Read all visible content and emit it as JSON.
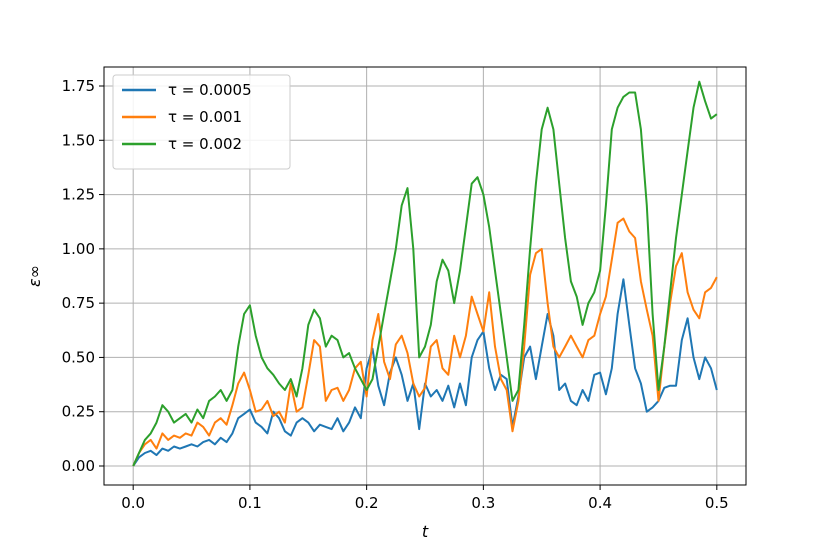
{
  "chart_data": {
    "type": "line",
    "xlabel": "t",
    "ylabel": "ε∞",
    "xlim": [
      -0.025,
      0.525
    ],
    "ylim": [
      -0.0875,
      1.8375
    ],
    "xticks": [
      0.0,
      0.1,
      0.2,
      0.3,
      0.4,
      0.5
    ],
    "xtick_labels": [
      "0.0",
      "0.1",
      "0.2",
      "0.3",
      "0.4",
      "0.5"
    ],
    "yticks": [
      0.0,
      0.25,
      0.5,
      0.75,
      1.0,
      1.25,
      1.5,
      1.75
    ],
    "ytick_labels": [
      "0.00",
      "0.25",
      "0.50",
      "0.75",
      "1.00",
      "1.25",
      "1.50",
      "1.75"
    ],
    "grid": true,
    "legend_position": "top-left",
    "series": [
      {
        "name": "τ = 0.0005",
        "color": "#1f77b4",
        "x": [
          0.0,
          0.005,
          0.01,
          0.015,
          0.02,
          0.025,
          0.03,
          0.035,
          0.04,
          0.045,
          0.05,
          0.055,
          0.06,
          0.065,
          0.07,
          0.075,
          0.08,
          0.085,
          0.09,
          0.095,
          0.1,
          0.105,
          0.11,
          0.115,
          0.12,
          0.125,
          0.13,
          0.135,
          0.14,
          0.145,
          0.15,
          0.155,
          0.16,
          0.165,
          0.17,
          0.175,
          0.18,
          0.185,
          0.19,
          0.195,
          0.2,
          0.205,
          0.21,
          0.215,
          0.22,
          0.225,
          0.23,
          0.235,
          0.24,
          0.245,
          0.25,
          0.255,
          0.26,
          0.265,
          0.27,
          0.275,
          0.28,
          0.285,
          0.29,
          0.295,
          0.3,
          0.305,
          0.31,
          0.315,
          0.32,
          0.325,
          0.33,
          0.335,
          0.34,
          0.345,
          0.35,
          0.355,
          0.36,
          0.365,
          0.37,
          0.375,
          0.38,
          0.385,
          0.39,
          0.395,
          0.4,
          0.405,
          0.41,
          0.415,
          0.42,
          0.425,
          0.43,
          0.435,
          0.44,
          0.445,
          0.45,
          0.455,
          0.46,
          0.465,
          0.47,
          0.475,
          0.48,
          0.485,
          0.49,
          0.495,
          0.5
        ],
        "values": [
          0.0,
          0.04,
          0.06,
          0.07,
          0.05,
          0.08,
          0.07,
          0.09,
          0.08,
          0.09,
          0.1,
          0.09,
          0.11,
          0.12,
          0.1,
          0.13,
          0.11,
          0.15,
          0.22,
          0.24,
          0.26,
          0.2,
          0.18,
          0.15,
          0.25,
          0.22,
          0.16,
          0.14,
          0.2,
          0.22,
          0.2,
          0.16,
          0.19,
          0.18,
          0.17,
          0.22,
          0.16,
          0.2,
          0.27,
          0.22,
          0.45,
          0.54,
          0.37,
          0.28,
          0.43,
          0.5,
          0.42,
          0.3,
          0.38,
          0.17,
          0.38,
          0.32,
          0.35,
          0.3,
          0.37,
          0.27,
          0.38,
          0.28,
          0.5,
          0.58,
          0.62,
          0.45,
          0.35,
          0.42,
          0.4,
          0.18,
          0.32,
          0.5,
          0.55,
          0.4,
          0.55,
          0.7,
          0.6,
          0.35,
          0.38,
          0.3,
          0.28,
          0.35,
          0.3,
          0.42,
          0.43,
          0.33,
          0.45,
          0.7,
          0.86,
          0.65,
          0.45,
          0.38,
          0.25,
          0.27,
          0.3,
          0.36,
          0.37,
          0.37,
          0.58,
          0.68,
          0.5,
          0.4,
          0.5,
          0.45,
          0.35
        ]
      },
      {
        "name": "τ = 0.001",
        "color": "#ff7f0e",
        "x": [
          0.0,
          0.005,
          0.01,
          0.015,
          0.02,
          0.025,
          0.03,
          0.035,
          0.04,
          0.045,
          0.05,
          0.055,
          0.06,
          0.065,
          0.07,
          0.075,
          0.08,
          0.085,
          0.09,
          0.095,
          0.1,
          0.105,
          0.11,
          0.115,
          0.12,
          0.125,
          0.13,
          0.135,
          0.14,
          0.145,
          0.15,
          0.155,
          0.16,
          0.165,
          0.17,
          0.175,
          0.18,
          0.185,
          0.19,
          0.195,
          0.2,
          0.205,
          0.21,
          0.215,
          0.22,
          0.225,
          0.23,
          0.235,
          0.24,
          0.245,
          0.25,
          0.255,
          0.26,
          0.265,
          0.27,
          0.275,
          0.28,
          0.285,
          0.29,
          0.295,
          0.3,
          0.305,
          0.31,
          0.315,
          0.32,
          0.325,
          0.33,
          0.335,
          0.34,
          0.345,
          0.35,
          0.355,
          0.36,
          0.365,
          0.37,
          0.375,
          0.38,
          0.385,
          0.39,
          0.395,
          0.4,
          0.405,
          0.41,
          0.415,
          0.42,
          0.425,
          0.43,
          0.435,
          0.44,
          0.445,
          0.45,
          0.455,
          0.46,
          0.465,
          0.47,
          0.475,
          0.48,
          0.485,
          0.49,
          0.495,
          0.5
        ],
        "values": [
          0.0,
          0.06,
          0.1,
          0.12,
          0.08,
          0.15,
          0.12,
          0.14,
          0.13,
          0.15,
          0.14,
          0.2,
          0.18,
          0.14,
          0.2,
          0.22,
          0.19,
          0.28,
          0.38,
          0.43,
          0.35,
          0.25,
          0.26,
          0.3,
          0.23,
          0.25,
          0.2,
          0.38,
          0.25,
          0.27,
          0.42,
          0.58,
          0.55,
          0.3,
          0.35,
          0.36,
          0.3,
          0.35,
          0.45,
          0.48,
          0.32,
          0.58,
          0.7,
          0.48,
          0.4,
          0.56,
          0.6,
          0.52,
          0.38,
          0.32,
          0.36,
          0.55,
          0.58,
          0.45,
          0.42,
          0.6,
          0.5,
          0.6,
          0.78,
          0.7,
          0.62,
          0.8,
          0.55,
          0.4,
          0.35,
          0.16,
          0.3,
          0.55,
          0.88,
          0.98,
          1.0,
          0.75,
          0.55,
          0.5,
          0.55,
          0.6,
          0.55,
          0.5,
          0.58,
          0.6,
          0.7,
          0.78,
          0.95,
          1.12,
          1.14,
          1.08,
          1.05,
          0.85,
          0.72,
          0.6,
          0.3,
          0.55,
          0.75,
          0.92,
          0.98,
          0.8,
          0.72,
          0.68,
          0.8,
          0.82,
          0.87
        ]
      },
      {
        "name": "τ = 0.002",
        "color": "#2ca02c",
        "x": [
          0.0,
          0.005,
          0.01,
          0.015,
          0.02,
          0.025,
          0.03,
          0.035,
          0.04,
          0.045,
          0.05,
          0.055,
          0.06,
          0.065,
          0.07,
          0.075,
          0.08,
          0.085,
          0.09,
          0.095,
          0.1,
          0.105,
          0.11,
          0.115,
          0.12,
          0.125,
          0.13,
          0.135,
          0.14,
          0.145,
          0.15,
          0.155,
          0.16,
          0.165,
          0.17,
          0.175,
          0.18,
          0.185,
          0.19,
          0.195,
          0.2,
          0.205,
          0.21,
          0.215,
          0.22,
          0.225,
          0.23,
          0.235,
          0.24,
          0.245,
          0.25,
          0.255,
          0.26,
          0.265,
          0.27,
          0.275,
          0.28,
          0.285,
          0.29,
          0.295,
          0.3,
          0.305,
          0.31,
          0.315,
          0.32,
          0.325,
          0.33,
          0.335,
          0.34,
          0.345,
          0.35,
          0.355,
          0.36,
          0.365,
          0.37,
          0.375,
          0.38,
          0.385,
          0.39,
          0.395,
          0.4,
          0.405,
          0.41,
          0.415,
          0.42,
          0.425,
          0.43,
          0.435,
          0.44,
          0.445,
          0.45,
          0.455,
          0.46,
          0.465,
          0.47,
          0.475,
          0.48,
          0.485,
          0.49,
          0.495,
          0.5
        ],
        "values": [
          0.0,
          0.06,
          0.12,
          0.15,
          0.2,
          0.28,
          0.25,
          0.2,
          0.22,
          0.24,
          0.2,
          0.26,
          0.22,
          0.3,
          0.32,
          0.35,
          0.3,
          0.35,
          0.55,
          0.7,
          0.74,
          0.6,
          0.5,
          0.45,
          0.42,
          0.38,
          0.35,
          0.4,
          0.32,
          0.45,
          0.65,
          0.72,
          0.68,
          0.55,
          0.6,
          0.58,
          0.5,
          0.52,
          0.45,
          0.4,
          0.35,
          0.4,
          0.55,
          0.7,
          0.85,
          1.0,
          1.2,
          1.28,
          1.0,
          0.5,
          0.55,
          0.65,
          0.85,
          0.95,
          0.9,
          0.75,
          0.9,
          1.1,
          1.3,
          1.33,
          1.25,
          1.1,
          0.9,
          0.7,
          0.5,
          0.3,
          0.35,
          0.65,
          1.0,
          1.3,
          1.55,
          1.65,
          1.55,
          1.3,
          1.05,
          0.85,
          0.78,
          0.65,
          0.75,
          0.8,
          0.9,
          1.2,
          1.55,
          1.65,
          1.7,
          1.72,
          1.72,
          1.55,
          1.2,
          0.7,
          0.35,
          0.55,
          0.8,
          1.05,
          1.25,
          1.45,
          1.65,
          1.77,
          1.68,
          1.6,
          1.62
        ]
      }
    ]
  }
}
